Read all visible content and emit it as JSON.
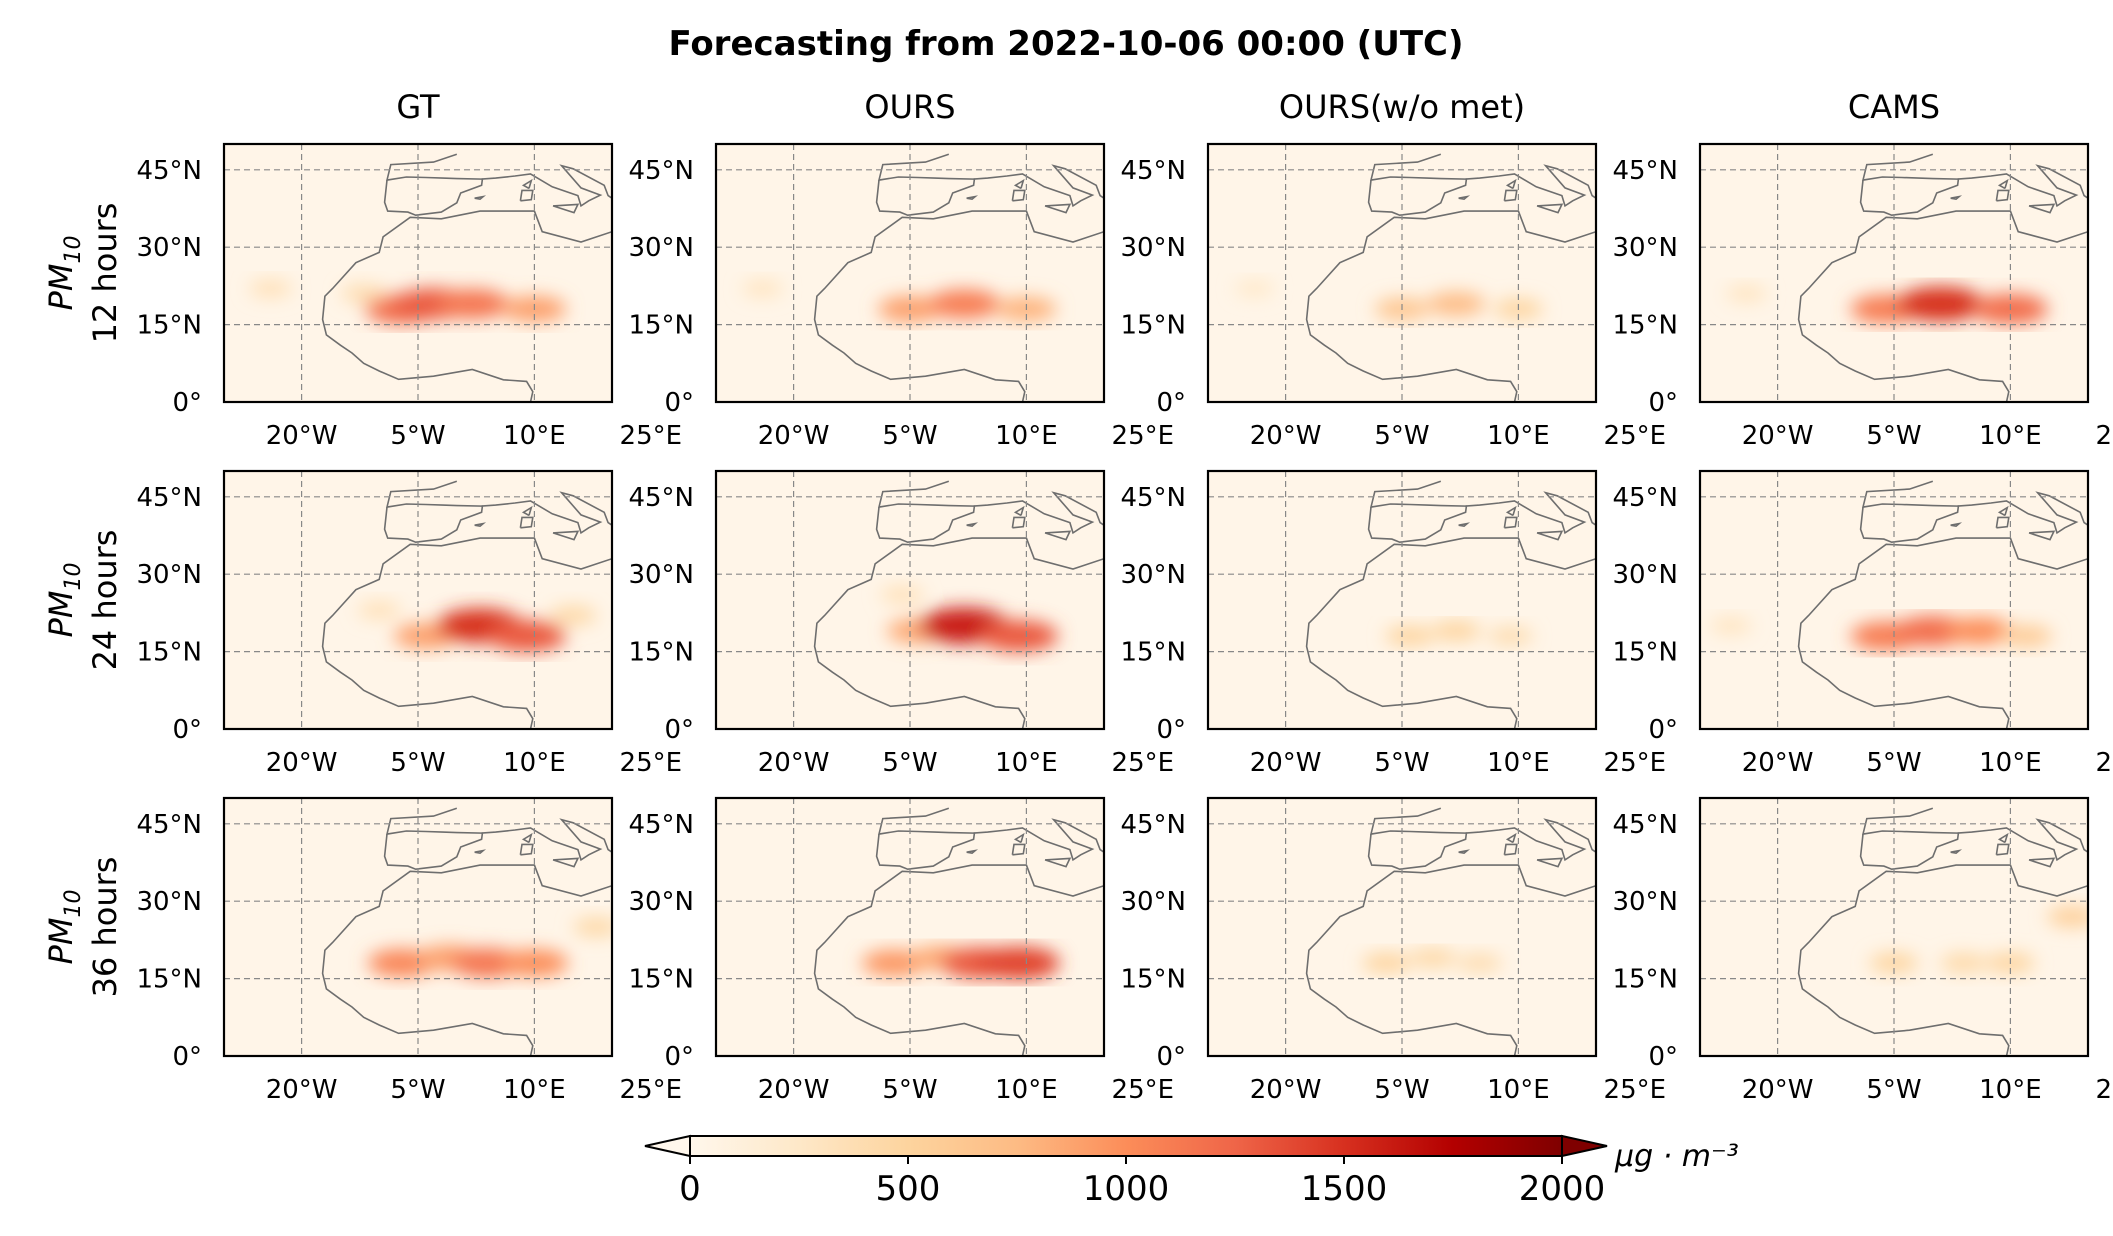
{
  "chart_data": {
    "type": "heatmap",
    "title": "Forecasting from 2022-10-06 00:00 (UTC)",
    "columns": [
      "GT",
      "OURS",
      "OURS(w/o met)",
      "CAMS"
    ],
    "rows": [
      {
        "var": "PM",
        "sub": "10",
        "lead": "12 hours"
      },
      {
        "var": "PM",
        "sub": "10",
        "lead": "24 hours"
      },
      {
        "var": "PM",
        "sub": "10",
        "lead": "36 hours"
      }
    ],
    "lon_range": [
      -30,
      20
    ],
    "lat_range": [
      0,
      50
    ],
    "lat_ticks": [
      0,
      15,
      30,
      45
    ],
    "lat_tick_labels": [
      "0°",
      "15°N",
      "30°N",
      "45°N"
    ],
    "lon_ticks": [
      -20,
      -5,
      10,
      25
    ],
    "lon_tick_labels": [
      "20°W",
      "5°W",
      "10°E",
      "25°E"
    ],
    "colorbar": {
      "min": 0,
      "max": 2000,
      "ticks": [
        0,
        500,
        1000,
        1500,
        2000
      ],
      "tick_labels": [
        "0",
        "500",
        "1000",
        "1500",
        "2000"
      ],
      "unit": "μg · m⁻³",
      "colormap": "OrRd"
    },
    "hotspots": [
      [
        [
          [
            -7,
            18,
            1200
          ],
          [
            -3,
            19,
            1300
          ],
          [
            2,
            19,
            1150
          ],
          [
            10,
            18,
            900
          ],
          [
            -12,
            21,
            400
          ],
          [
            -24,
            22,
            350
          ]
        ],
        [
          [
            -5,
            18,
            900
          ],
          [
            2,
            19,
            1100
          ],
          [
            10,
            18,
            800
          ],
          [
            -24,
            22,
            300
          ]
        ],
        [
          [
            -5,
            18,
            650
          ],
          [
            2,
            19,
            750
          ],
          [
            10,
            18,
            500
          ],
          [
            -24,
            22,
            250
          ]
        ],
        [
          [
            -6,
            18,
            1100
          ],
          [
            1,
            19,
            1500
          ],
          [
            10,
            18,
            1200
          ],
          [
            -24,
            21,
            300
          ]
        ]
      ],
      [
        [
          [
            -4,
            18,
            900
          ],
          [
            3,
            20,
            1500
          ],
          [
            9,
            18,
            1300
          ],
          [
            15,
            22,
            450
          ],
          [
            -10,
            23,
            350
          ]
        ],
        [
          [
            -4,
            19,
            850
          ],
          [
            2,
            20,
            1600
          ],
          [
            9,
            18,
            1300
          ],
          [
            -6,
            26,
            350
          ]
        ],
        [
          [
            -4,
            18,
            500
          ],
          [
            2,
            19,
            500
          ],
          [
            9,
            18,
            400
          ]
        ],
        [
          [
            -6,
            18,
            1100
          ],
          [
            0,
            19,
            1200
          ],
          [
            6,
            19,
            1000
          ],
          [
            12,
            18,
            600
          ],
          [
            -26,
            20,
            300
          ]
        ]
      ],
      [
        [
          [
            -7,
            18,
            1050
          ],
          [
            -1,
            19,
            900
          ],
          [
            4,
            18,
            1150
          ],
          [
            10,
            18,
            1000
          ],
          [
            18,
            25,
            450
          ]
        ],
        [
          [
            -7,
            18,
            950
          ],
          [
            -1,
            19,
            850
          ],
          [
            4,
            18,
            1300
          ],
          [
            9,
            18,
            1400
          ]
        ],
        [
          [
            -7,
            18,
            500
          ],
          [
            -1,
            19,
            450
          ],
          [
            5,
            18,
            400
          ]
        ],
        [
          [
            -5,
            18,
            500
          ],
          [
            4,
            18,
            450
          ],
          [
            10,
            18,
            500
          ],
          [
            18,
            27,
            550
          ]
        ]
      ]
    ]
  }
}
